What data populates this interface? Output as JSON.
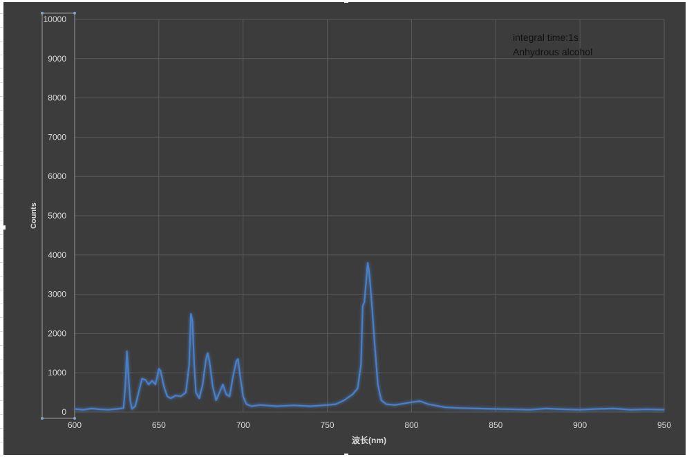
{
  "chart_data": {
    "type": "line",
    "xlabel": "波长(nm)",
    "ylabel": "Counts",
    "annotations": [
      "integral time:1s",
      "Anhydrous alcohol"
    ],
    "xlim": [
      600,
      950
    ],
    "ylim": [
      0,
      10000
    ],
    "xticks": [
      600,
      650,
      700,
      750,
      800,
      850,
      900,
      950
    ],
    "yticks": [
      0,
      1000,
      2000,
      3000,
      4000,
      5000,
      6000,
      7000,
      8000,
      9000,
      10000
    ],
    "grid": true,
    "legend": "none",
    "colors": {
      "background": "#3c3c3c",
      "gridline": "#5a5a5a",
      "axis_text": "#d9d9d9",
      "annotation_text": "#111111",
      "series": "#4a7fc8"
    },
    "series": [
      {
        "name": "",
        "x": [
          600,
          605,
          610,
          615,
          620,
          625,
          629,
          630,
          631,
          632,
          633,
          634,
          636,
          638,
          640,
          642,
          644,
          646,
          648,
          650,
          651,
          653,
          655,
          657,
          660,
          663,
          666,
          668,
          669,
          670,
          671,
          672,
          674,
          676,
          678,
          679,
          680,
          682,
          684,
          686,
          688,
          690,
          692,
          694,
          696,
          697,
          698,
          700,
          702,
          705,
          710,
          720,
          730,
          740,
          750,
          755,
          760,
          765,
          768,
          770,
          771,
          772,
          774,
          775,
          776,
          777,
          778,
          780,
          782,
          785,
          790,
          800,
          805,
          810,
          820,
          830,
          840,
          850,
          860,
          870,
          880,
          890,
          900,
          910,
          920,
          930,
          940,
          950
        ],
        "y": [
          80,
          60,
          90,
          70,
          60,
          80,
          100,
          600,
          1550,
          900,
          300,
          80,
          150,
          500,
          850,
          820,
          700,
          800,
          700,
          1100,
          1050,
          650,
          400,
          350,
          420,
          400,
          500,
          1200,
          2500,
          2300,
          1200,
          500,
          350,
          700,
          1350,
          1500,
          1300,
          650,
          300,
          500,
          700,
          450,
          400,
          900,
          1300,
          1350,
          1000,
          400,
          200,
          150,
          180,
          150,
          170,
          150,
          180,
          200,
          300,
          450,
          600,
          1200,
          2700,
          2800,
          3800,
          3500,
          3000,
          2400,
          1800,
          700,
          300,
          200,
          180,
          250,
          280,
          200,
          120,
          100,
          90,
          80,
          70,
          60,
          90,
          70,
          60,
          80,
          90,
          60,
          70,
          60
        ]
      }
    ]
  }
}
